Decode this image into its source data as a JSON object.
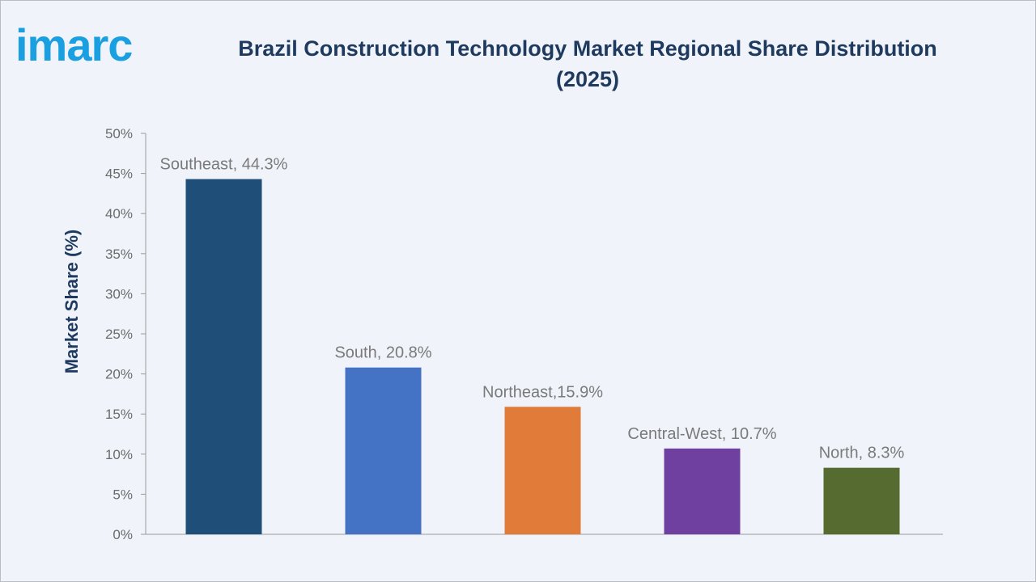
{
  "brand": {
    "logo_text": "imarc",
    "logo_color": "#1aa0e0"
  },
  "title": {
    "line1": "Brazil Construction Technology Market Regional Share Distribution",
    "line2": "(2025)"
  },
  "chart_data": {
    "type": "bar",
    "title": "Brazil Construction Technology Market Regional Share Distribution (2025)",
    "xlabel": "",
    "ylabel": "Market Share (%)",
    "ylim": [
      0,
      50
    ],
    "yticks": [
      "0%",
      "5%",
      "10%",
      "15%",
      "20%",
      "25%",
      "30%",
      "35%",
      "40%",
      "45%",
      "50%"
    ],
    "categories": [
      "Southeast",
      "South",
      "Northeast",
      "Central-West",
      "North"
    ],
    "values": [
      44.3,
      20.8,
      15.9,
      10.7,
      8.3
    ],
    "data_labels": [
      "Southeast, 44.3%",
      "South, 20.8%",
      "Northeast,15.9%",
      "Central-West, 10.7%",
      "North, 8.3%"
    ],
    "colors": [
      "#1f4e79",
      "#4472c4",
      "#e07b39",
      "#7040a0",
      "#556b2f"
    ],
    "grid": false,
    "legend": "none"
  }
}
